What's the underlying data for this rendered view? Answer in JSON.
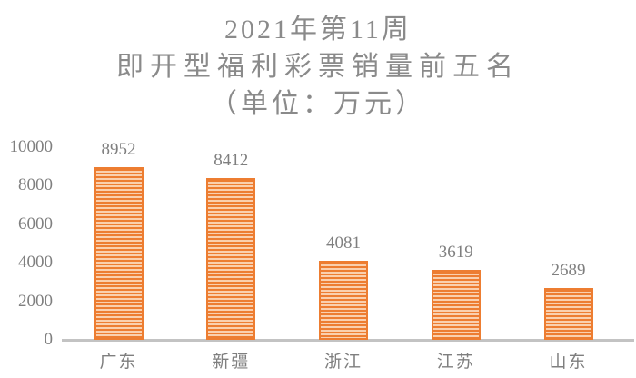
{
  "title": {
    "line1": "2021年第11周",
    "line2": "即开型福利彩票销量前五名",
    "line3": "（单位：万元）"
  },
  "chart_data": {
    "type": "bar",
    "title": "2021年第11周 即开型福利彩票销量前五名（单位：万元）",
    "categories": [
      "广东",
      "新疆",
      "浙江",
      "江苏",
      "山东"
    ],
    "values": [
      8952,
      8412,
      4081,
      3619,
      2689
    ],
    "data_labels": [
      "8952",
      "8412",
      "4081",
      "3619",
      "2689"
    ],
    "xlabel": "",
    "ylabel": "",
    "ylim": [
      0,
      10000
    ],
    "yticks": [
      0,
      2000,
      4000,
      6000,
      8000,
      10000
    ],
    "grid": false,
    "legend": "none",
    "bar_fill_pattern": "horizontal-stripes",
    "bar_color": "#ed7d31",
    "bar_stripe_light_color": "#fad0ae",
    "axis_line_color": "#c3c3c3",
    "label_color": "#7f7f7f",
    "title_color": "#8a8a8a"
  }
}
